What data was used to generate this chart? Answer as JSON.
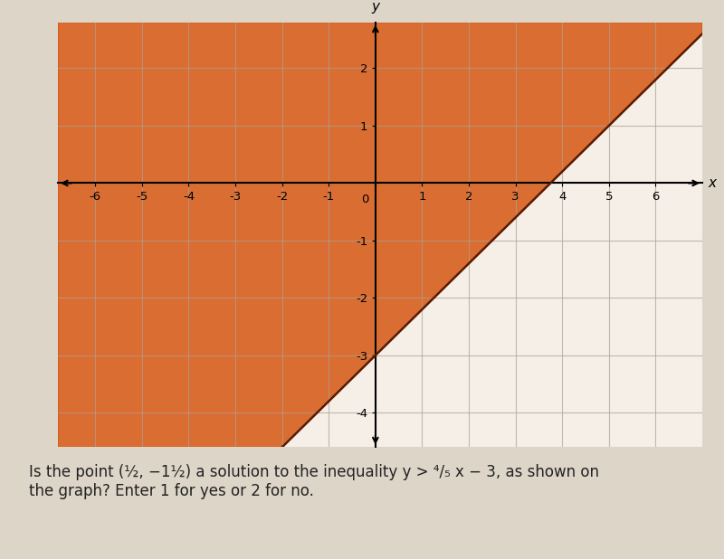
{
  "title": "",
  "xlabel": "x",
  "ylabel": "y",
  "xlim": [
    -6.8,
    7.0
  ],
  "ylim": [
    -4.6,
    2.8
  ],
  "xticks": [
    -6,
    -5,
    -4,
    -3,
    -2,
    -1,
    0,
    1,
    2,
    3,
    4,
    5,
    6
  ],
  "yticks": [
    -4,
    -3,
    -2,
    -1,
    0,
    1,
    2
  ],
  "slope": 0.8,
  "intercept": -3.0,
  "shade_color": "#d4500a",
  "shade_alpha": 0.82,
  "line_color": "#5a1a00",
  "line_width": 1.8,
  "background_color": "#ddd5c8",
  "plot_bg_color": "#f0e8df",
  "unshaded_color": "#f5efe8",
  "grid_color": "#b0a090",
  "grid_alpha": 0.7,
  "question_text": "Is the point (½, −1½) a solution to the inequality y > ⁴₅x − 3, as shown on\nthe graph? Enter 1 for yes or 2 for no.",
  "question_fontsize": 12
}
